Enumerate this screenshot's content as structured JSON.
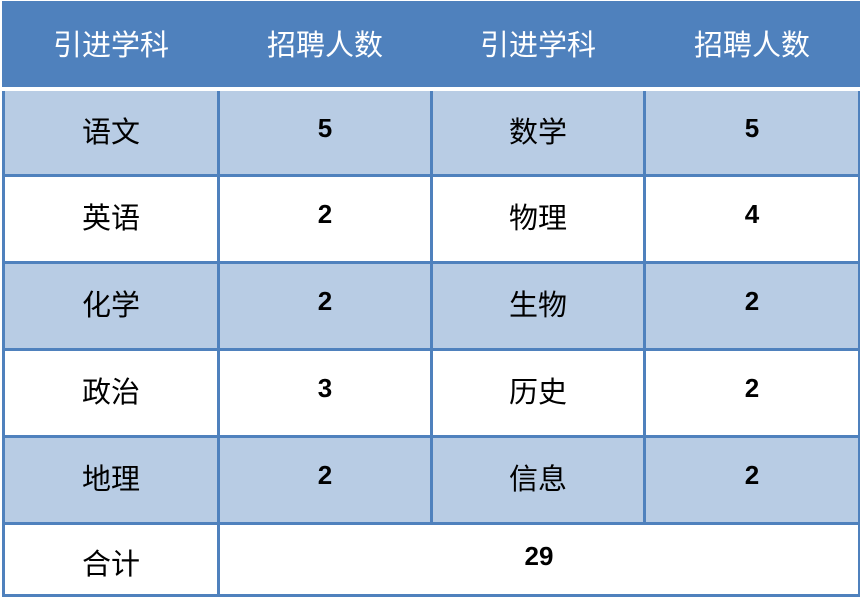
{
  "headers": [
    "引进学科",
    "招聘人数",
    "引进学科",
    "招聘人数"
  ],
  "rows": [
    {
      "subject_a": "语文",
      "count_a": "5",
      "subject_b": "数学",
      "count_b": "5"
    },
    {
      "subject_a": "英语",
      "count_a": "2",
      "subject_b": "物理",
      "count_b": "4"
    },
    {
      "subject_a": "化学",
      "count_a": "2",
      "subject_b": "生物",
      "count_b": "2"
    },
    {
      "subject_a": "政治",
      "count_a": "3",
      "subject_b": "历史",
      "count_b": "2"
    },
    {
      "subject_a": "地理",
      "count_a": "2",
      "subject_b": "信息",
      "count_b": "2"
    }
  ],
  "total": {
    "label": "合计",
    "value": "29"
  },
  "colors": {
    "header": "#4f81bd",
    "band": "#b8cce4",
    "border": "#4f81bd"
  }
}
